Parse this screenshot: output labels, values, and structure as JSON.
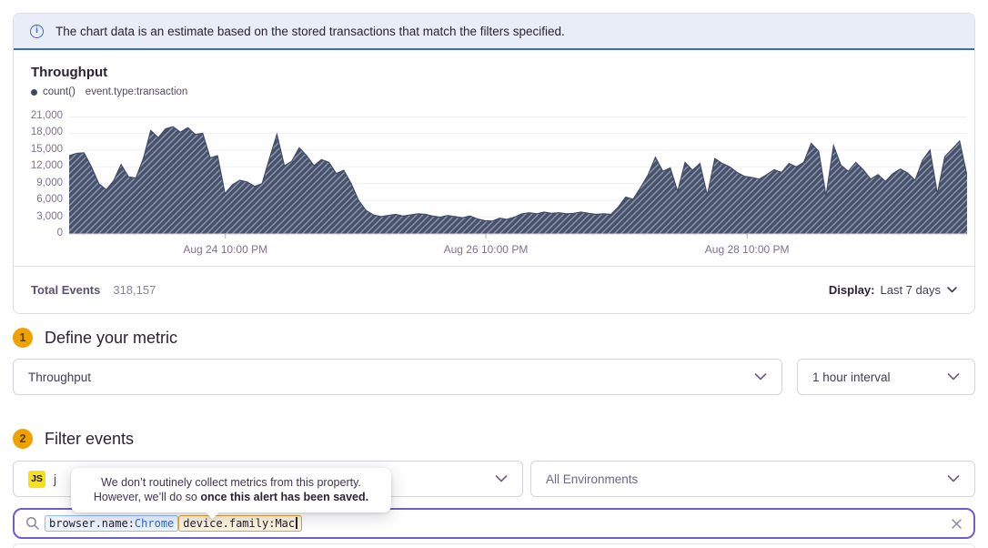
{
  "banner": {
    "text": "The chart data is an estimate based on the stored transactions that match the filters specified."
  },
  "chart_panel": {
    "title": "Throughput",
    "legend": {
      "series": "count()",
      "filter": "event.type:transaction"
    },
    "footer": {
      "total_label": "Total Events",
      "total_value": "318,157",
      "display_label": "Display:",
      "display_value": "Last 7 days"
    }
  },
  "chart_data": {
    "type": "area",
    "title": "Throughput",
    "ylim": [
      0,
      21000
    ],
    "y_tick_step": 3000,
    "y_tick_labels": [
      "0",
      "3,000",
      "6,000",
      "9,000",
      "12,000",
      "15,000",
      "18,000",
      "21,000"
    ],
    "x_ticks": [
      {
        "label": "Aug 24 10:00 PM",
        "pos": 0.174
      },
      {
        "label": "Aug 26 10:00 PM",
        "pos": 0.464
      },
      {
        "label": "Aug 28 10:00 PM",
        "pos": 0.755
      }
    ],
    "grid": true,
    "legend_position": "top-left",
    "fill_color": "#47536e",
    "hatch_color": "rgba(255,255,255,0.38)",
    "line_color": "#424d68",
    "series": [
      {
        "name": "count() event.type:transaction",
        "values": [
          14000,
          14400,
          14500,
          12000,
          9000,
          7900,
          9500,
          12400,
          10200,
          10000,
          13500,
          18500,
          17200,
          18800,
          19200,
          18200,
          19000,
          17800,
          18000,
          13600,
          14000,
          7200,
          8800,
          9600,
          9300,
          8500,
          9000,
          13500,
          17800,
          12200,
          13000,
          15400,
          14000,
          12200,
          13300,
          12800,
          10800,
          11400,
          9000,
          6000,
          4200,
          3400,
          3100,
          3300,
          3500,
          3200,
          3400,
          3600,
          3500,
          3200,
          3000,
          3300,
          3100,
          2900,
          3200,
          2700,
          2400,
          2300,
          2800,
          2600,
          3000,
          3600,
          3800,
          3600,
          3900,
          3700,
          3800,
          3600,
          3700,
          3900,
          3700,
          3500,
          3600,
          3500,
          4800,
          6600,
          6200,
          8300,
          10500,
          13700,
          11200,
          11800,
          7600,
          12800,
          11400,
          12600,
          6900,
          13500,
          12600,
          12000,
          11000,
          10300,
          10100,
          9800,
          10600,
          11500,
          11000,
          12600,
          12000,
          12800,
          16200,
          14800,
          6800,
          15800,
          12300,
          11200,
          12800,
          11500,
          9800,
          10600,
          9400,
          10800,
          11600,
          10900,
          9600,
          13200,
          15000,
          7200,
          13800,
          15200,
          16600,
          10400
        ]
      }
    ]
  },
  "step1": {
    "number": "1",
    "title": "Define your metric",
    "metric": "Throughput",
    "interval": "1 hour interval"
  },
  "step2": {
    "number": "2",
    "title": "Filter events",
    "project_badge": "JS",
    "project_visible_text": "j",
    "environment": "All Environments"
  },
  "tooltip": {
    "line1": "We don’t routinely collect metrics from this property.",
    "line2_prefix": "However, we’ll do so ",
    "line2_bold": "once this alert has been saved."
  },
  "search": {
    "tokens": [
      {
        "key": "browser.name:",
        "value": "Chrome",
        "style": "blue",
        "caret": false
      },
      {
        "key": "device.family:",
        "value": "Mac",
        "style": "gold",
        "caret": true
      }
    ]
  },
  "colors": {
    "accent_purple": "#6d5fc7",
    "banner_blue": "#3b6dcb",
    "step_amber": "#efa100",
    "token_blue_border": "#94bbef",
    "token_gold_border": "#d5a43b",
    "chart_fill": "#47536e"
  }
}
